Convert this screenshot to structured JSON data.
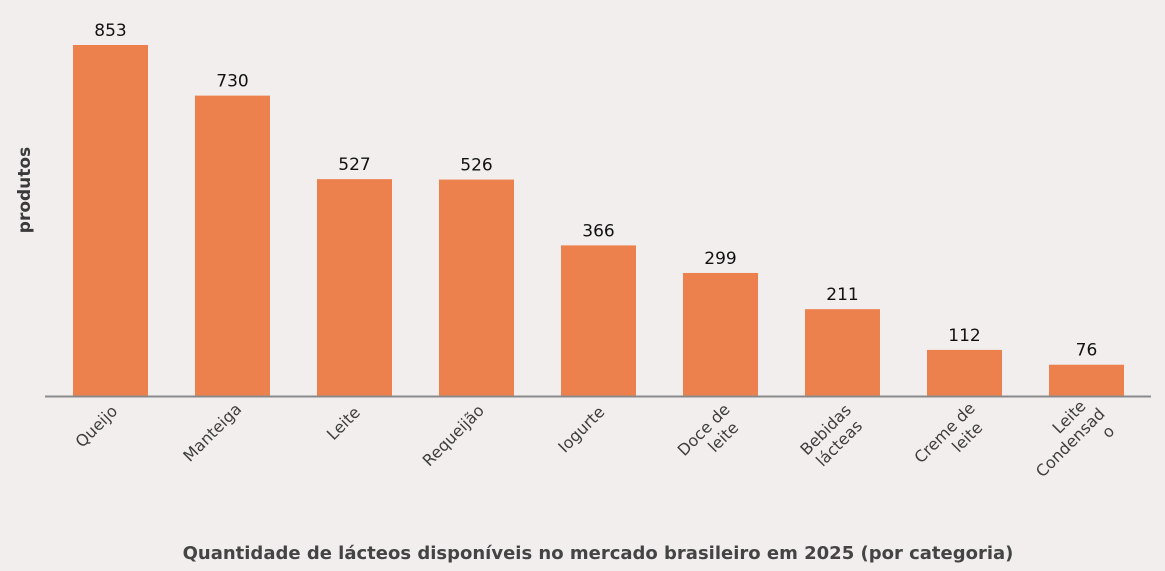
{
  "chart_data": {
    "type": "bar",
    "title": "Quantidade de lácteos disponíveis no mercado brasileiro em 2025 (por categoria)",
    "xlabel": "Quantidade de lácteos disponíveis no mercado brasileiro em 2025 (por categoria)",
    "ylabel": "produtos",
    "categories": [
      [
        "Queijo"
      ],
      [
        "Manteiga"
      ],
      [
        "Leite"
      ],
      [
        "Requeijão"
      ],
      [
        "Iogurte"
      ],
      [
        "Doce de",
        "leite"
      ],
      [
        "Bebidas",
        "lácteas"
      ],
      [
        "Creme de",
        "leite"
      ],
      [
        "Leite",
        "Condensad",
        "o"
      ]
    ],
    "category_names": [
      "Queijo",
      "Manteiga",
      "Leite",
      "Requeijão",
      "Iogurte",
      "Doce de leite",
      "Bebidas lácteas",
      "Creme de leite",
      "Leite Condensado"
    ],
    "values": [
      853,
      730,
      527,
      526,
      366,
      299,
      211,
      112,
      76
    ],
    "data_labels": [
      "853",
      "730",
      "527",
      "526",
      "366",
      "299",
      "211",
      "112",
      "76"
    ],
    "ylim": [
      0,
      853
    ],
    "grid": false,
    "legend": "none",
    "colors": {
      "bar": "#ed814e",
      "axis": "#8a8a8a",
      "background": "#f2eeed"
    }
  }
}
